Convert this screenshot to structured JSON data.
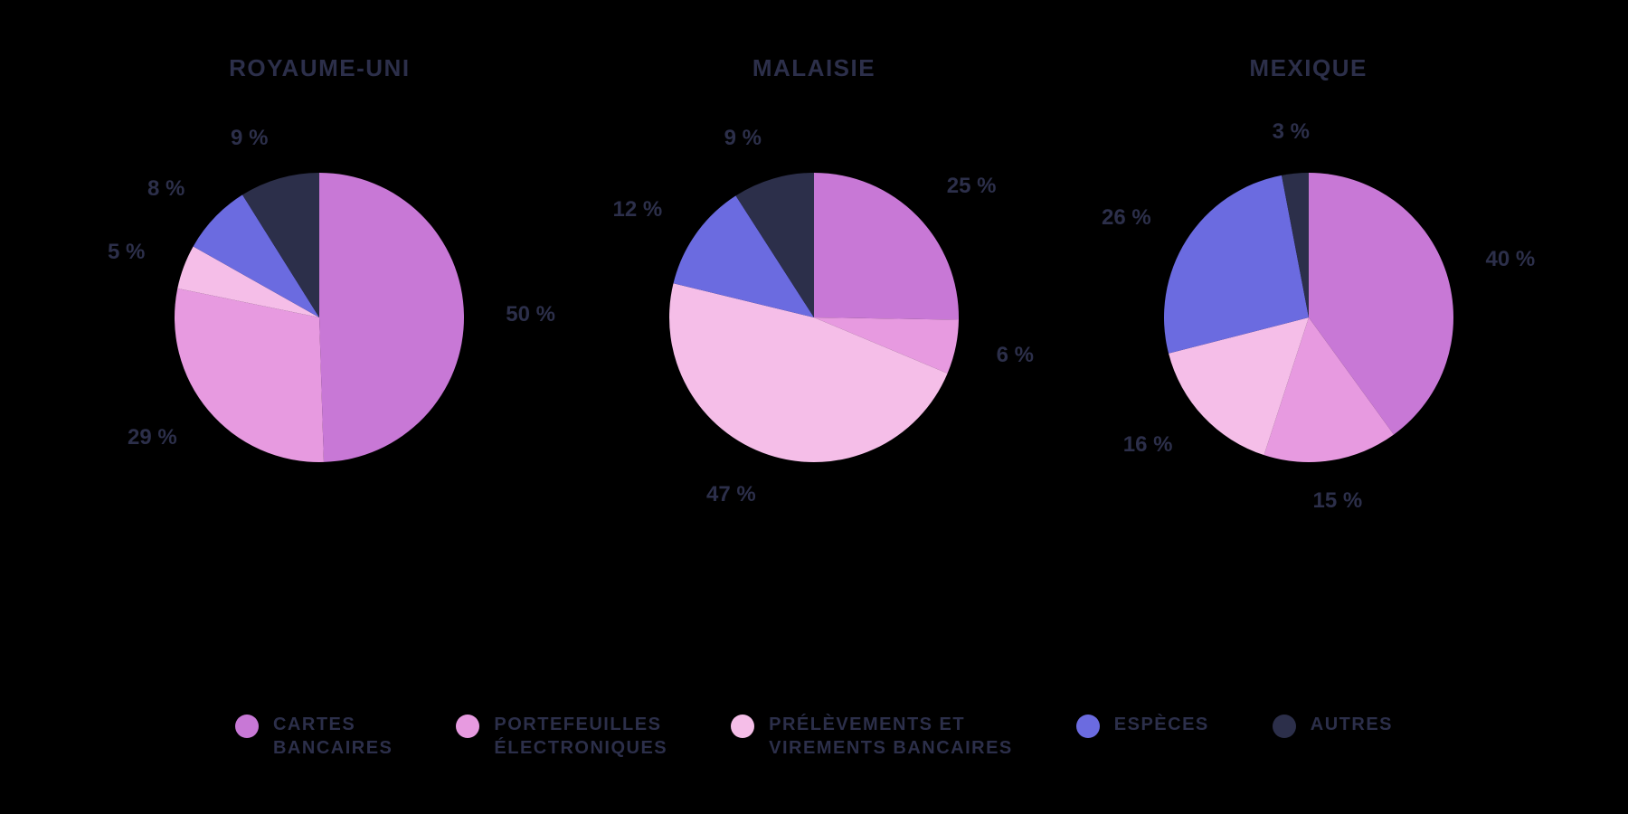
{
  "background_color": "#000000",
  "text_color": "#2c2f4a",
  "title_fontsize": 26,
  "label_fontsize": 24,
  "legend_fontsize": 20,
  "pie_radius": 160,
  "pie_box": 440,
  "label_offset": 46,
  "categories": [
    {
      "key": "cartes",
      "label": "CARTES\nBANCAIRES",
      "color": "#c878d6"
    },
    {
      "key": "portefeuilles",
      "label": "PORTEFEUILLES\nÉLECTRONIQUES",
      "color": "#e79ae0"
    },
    {
      "key": "prelevements",
      "label": "PRÉLÈVEMENTS ET\nVIREMENTS BANCAIRES",
      "color": "#f5bee8"
    },
    {
      "key": "especes",
      "label": "ESPÈCES",
      "color": "#6b6be0"
    },
    {
      "key": "autres",
      "label": "AUTRES",
      "color": "#2c2f4a"
    }
  ],
  "charts": [
    {
      "title": "ROYAUME-UNI",
      "type": "pie",
      "slices": [
        {
          "category": "cartes",
          "value": 50,
          "label": "50 %"
        },
        {
          "category": "portefeuilles",
          "value": 29,
          "label": "29 %"
        },
        {
          "category": "prelevements",
          "value": 5,
          "label": "5 %"
        },
        {
          "category": "especes",
          "value": 8,
          "label": "8 %"
        },
        {
          "category": "autres",
          "value": 9,
          "label": "9 %"
        }
      ]
    },
    {
      "title": "MALAISIE",
      "type": "pie",
      "slices": [
        {
          "category": "cartes",
          "value": 25,
          "label": "25 %"
        },
        {
          "category": "portefeuilles",
          "value": 6,
          "label": "6 %"
        },
        {
          "category": "prelevements",
          "value": 47,
          "label": "47 %"
        },
        {
          "category": "especes",
          "value": 12,
          "label": "12 %"
        },
        {
          "category": "autres",
          "value": 9,
          "label": "9 %"
        }
      ]
    },
    {
      "title": "MEXIQUE",
      "type": "pie",
      "slices": [
        {
          "category": "cartes",
          "value": 40,
          "label": "40 %"
        },
        {
          "category": "portefeuilles",
          "value": 15,
          "label": "15 %"
        },
        {
          "category": "prelevements",
          "value": 16,
          "label": "16 %"
        },
        {
          "category": "especes",
          "value": 26,
          "label": "26 %"
        },
        {
          "category": "autres",
          "value": 3,
          "label": "3 %"
        }
      ]
    }
  ]
}
